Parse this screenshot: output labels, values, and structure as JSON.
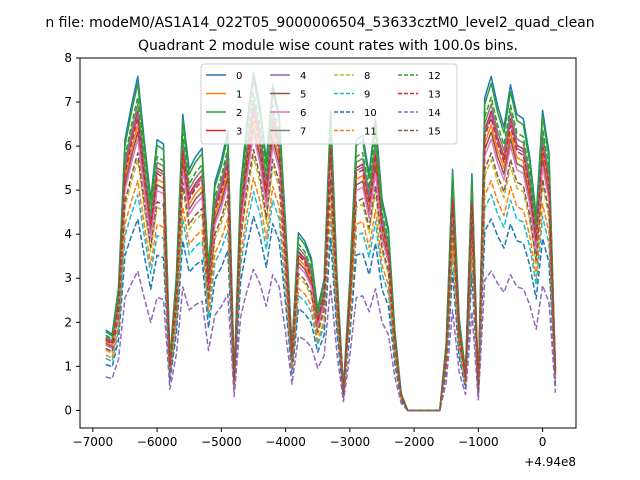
{
  "figure_title": "n file: modeM0/AS1A14_022T05_9000006504_53633cztM0_level2_quad_clean",
  "chart_data": {
    "type": "line",
    "title": "Quadrant 2 module wise count rates with 100.0s bins.",
    "xlabel": "",
    "ylabel": "",
    "x_offset_label": "+4.94e8",
    "xlim": [
      -7200,
      520
    ],
    "ylim": [
      -0.4,
      8.0
    ],
    "x_ticks": [
      -7000,
      -6000,
      -5000,
      -4000,
      -3000,
      -2000,
      -1000,
      0
    ],
    "x_tick_labels": [
      "−7000",
      "−6000",
      "−5000",
      "−4000",
      "−3000",
      "−2000",
      "−1000",
      "0"
    ],
    "y_ticks": [
      0,
      1,
      2,
      3,
      4,
      5,
      6,
      7,
      8
    ],
    "grid": false,
    "legend": {
      "position": "top-center",
      "columns": 4
    },
    "x": [
      -6800,
      -6700,
      -6600,
      -6500,
      -6400,
      -6300,
      -6200,
      -6100,
      -6000,
      -5900,
      -5800,
      -5700,
      -5600,
      -5500,
      -5400,
      -5300,
      -5200,
      -5100,
      -5000,
      -4900,
      -4800,
      -4700,
      -4600,
      -4500,
      -4400,
      -4300,
      -4200,
      -4100,
      -4000,
      -3900,
      -3800,
      -3700,
      -3600,
      -3500,
      -3400,
      -3300,
      -3200,
      -3100,
      -3000,
      -2900,
      -2800,
      -2700,
      -2600,
      -2500,
      -2400,
      -2300,
      -2200,
      -2100,
      -2000,
      -1900,
      -1800,
      -1700,
      -1600,
      -1500,
      -1400,
      -1300,
      -1200,
      -1100,
      -1000,
      -900,
      -800,
      -700,
      -600,
      -500,
      -400,
      -300,
      -200,
      -100,
      0,
      100,
      200
    ],
    "reference": [
      1.9,
      1.8,
      2.9,
      6.4,
      7.2,
      7.9,
      6.4,
      5.0,
      6.4,
      6.3,
      1.2,
      3.2,
      7.0,
      5.7,
      6.0,
      6.2,
      3.4,
      5.4,
      5.9,
      6.6,
      0.8,
      5.3,
      6.8,
      8.0,
      7.2,
      5.9,
      7.7,
      7.0,
      4.4,
      1.5,
      4.2,
      4.0,
      3.6,
      2.4,
      3.1,
      7.1,
      3.2,
      0.5,
      3.1,
      6.4,
      6.5,
      5.6,
      6.9,
      5.0,
      4.3,
      1.9,
      0.4,
      0.0,
      0.0,
      0.0,
      0.0,
      0.0,
      0.0,
      1.6,
      5.7,
      2.2,
      0.9,
      5.6,
      0.6,
      7.4,
      7.9,
      7.2,
      6.7,
      7.7,
      7.0,
      6.9,
      6.0,
      4.6,
      7.1,
      6.1,
      1.0
    ],
    "series": [
      {
        "name": "0",
        "color": "#1f77b4",
        "dash": "solid",
        "scale": 0.96
      },
      {
        "name": "1",
        "color": "#ff7f0e",
        "dash": "solid",
        "scale": 0.82
      },
      {
        "name": "2",
        "color": "#2ca02c",
        "dash": "solid",
        "scale": 0.94
      },
      {
        "name": "3",
        "color": "#d62728",
        "dash": "solid",
        "scale": 0.86
      },
      {
        "name": "4",
        "color": "#9467bd",
        "dash": "solid",
        "scale": 0.85
      },
      {
        "name": "5",
        "color": "#8c564b",
        "dash": "solid",
        "scale": 0.8
      },
      {
        "name": "6",
        "color": "#e377c2",
        "dash": "solid",
        "scale": 0.78
      },
      {
        "name": "7",
        "color": "#7f7f7f",
        "dash": "solid",
        "scale": 0.88
      },
      {
        "name": "8",
        "color": "#bcbd22",
        "dash": "dashed",
        "scale": 0.72
      },
      {
        "name": "9",
        "color": "#17becf",
        "dash": "dashed",
        "scale": 0.62
      },
      {
        "name": "10",
        "color": "#1f77b4",
        "dash": "dashed",
        "scale": 0.55
      },
      {
        "name": "11",
        "color": "#ff7f0e",
        "dash": "dashed",
        "scale": 0.66
      },
      {
        "name": "12",
        "color": "#2ca02c",
        "dash": "dashed",
        "scale": 0.9
      },
      {
        "name": "13",
        "color": "#d62728",
        "dash": "dashed",
        "scale": 0.84
      },
      {
        "name": "14",
        "color": "#9467bd",
        "dash": "dashed",
        "scale": 0.4
      },
      {
        "name": "15",
        "color": "#8c564b",
        "dash": "dashed",
        "scale": 0.74
      }
    ]
  }
}
